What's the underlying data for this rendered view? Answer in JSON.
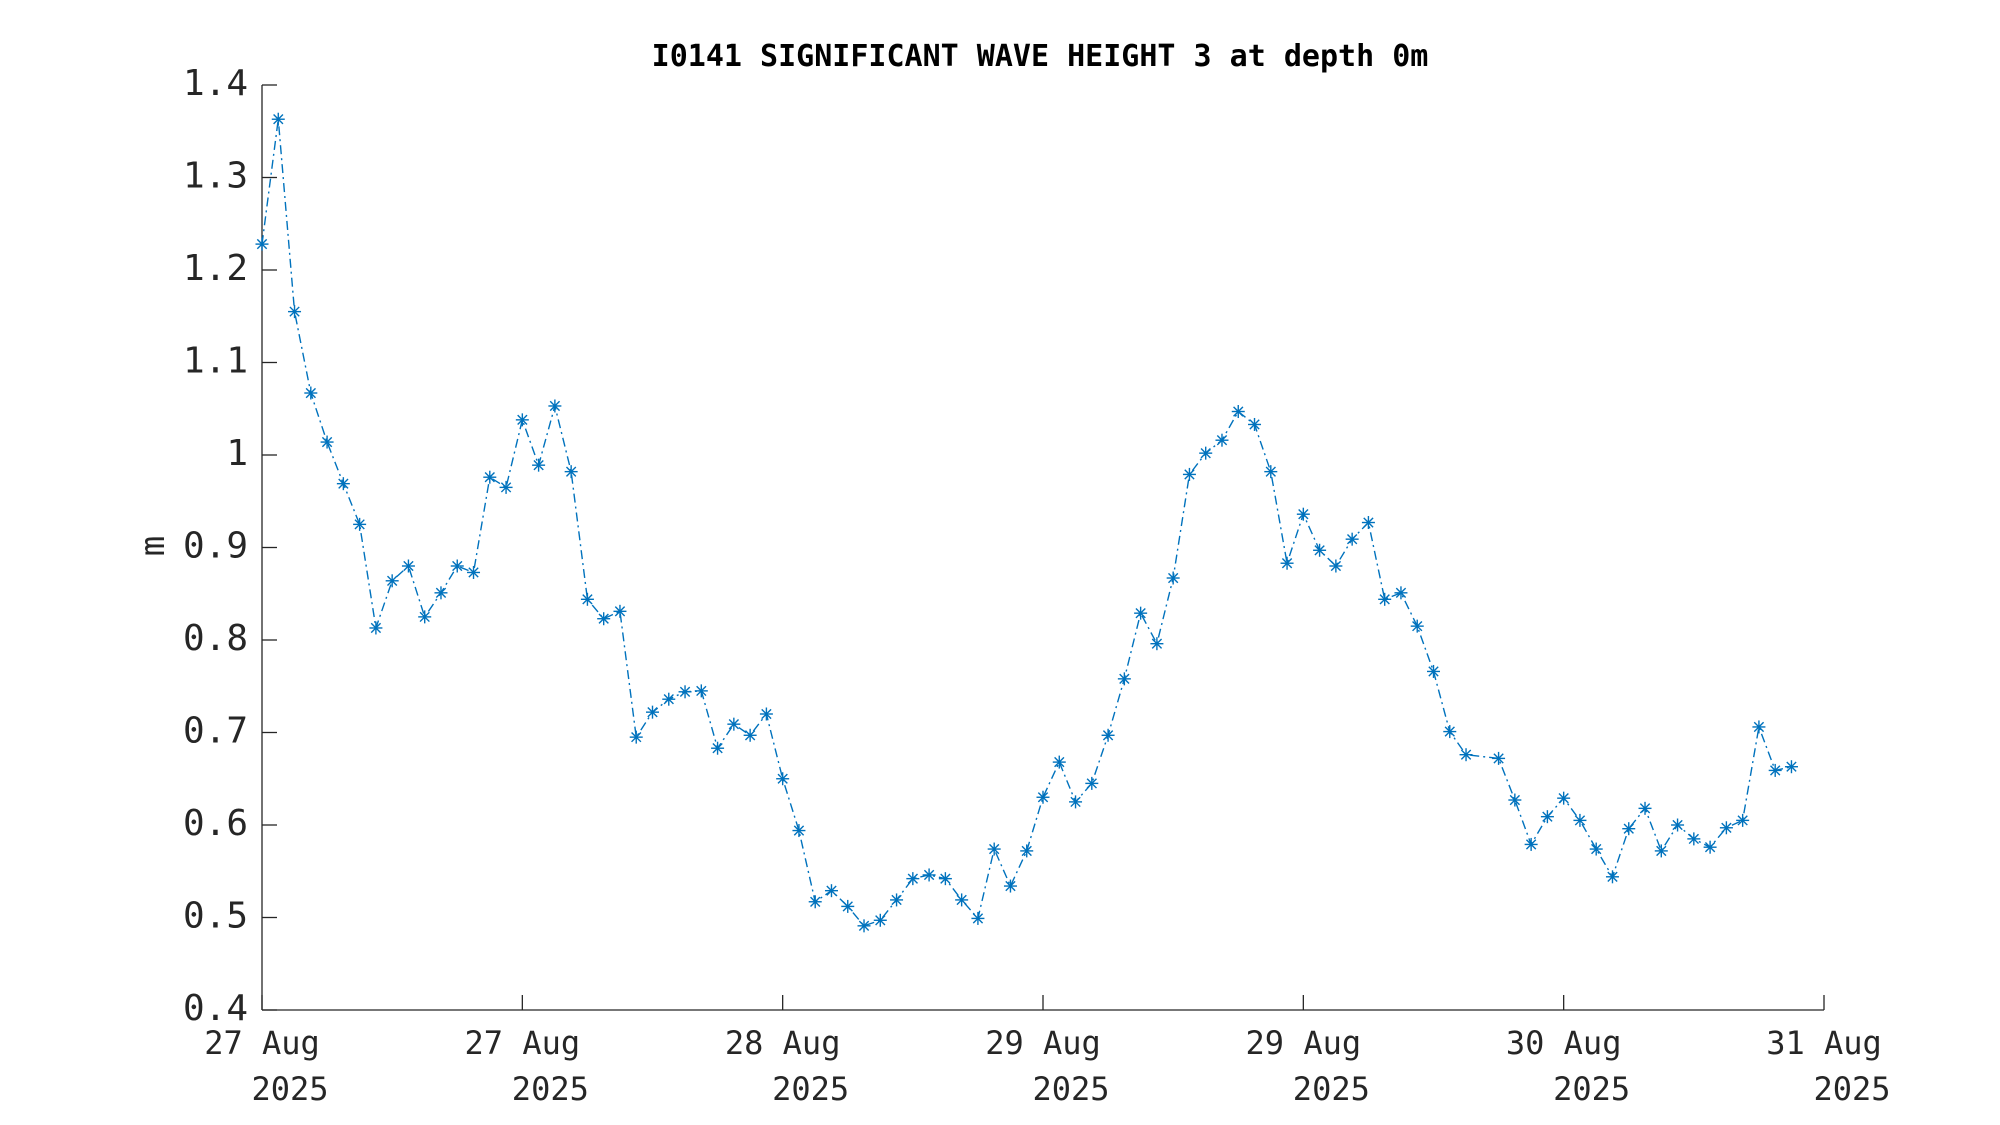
{
  "chart_data": {
    "type": "line",
    "title": "I0141 SIGNIFICANT WAVE HEIGHT 3 at depth 0m",
    "xlabel": "",
    "ylabel": "m",
    "ylim": [
      0.4,
      1.4
    ],
    "yticks": [
      0.4,
      0.5,
      0.6,
      0.7,
      0.8,
      0.9,
      1,
      1.1,
      1.2,
      1.3,
      1.4
    ],
    "ytick_labels": [
      "0.4",
      "0.5",
      "0.6",
      "0.7",
      "0.8",
      "0.9",
      "1",
      "1.1",
      "1.2",
      "1.3",
      "1.4"
    ],
    "xlim_index": [
      0,
      96
    ],
    "xtick_positions": [
      0,
      16,
      32,
      48,
      64,
      80,
      96
    ],
    "xtick_labels": [
      [
        "27 Aug",
        "2025"
      ],
      [
        "27 Aug",
        "2025"
      ],
      [
        "28 Aug",
        "2025"
      ],
      [
        "29 Aug",
        "2025"
      ],
      [
        "29 Aug",
        "2025"
      ],
      [
        "30 Aug",
        "2025"
      ],
      [
        "31 Aug",
        "2025"
      ]
    ],
    "grid": false,
    "line_style": "dash-dot",
    "marker": "asterisk",
    "series": [
      {
        "color": "#0072BD",
        "points": [
          [
            0,
            1.228
          ],
          [
            1,
            1.363
          ],
          [
            2,
            1.155
          ],
          [
            3,
            1.067
          ],
          [
            4,
            1.014
          ],
          [
            5,
            0.969
          ],
          [
            6,
            0.925
          ],
          [
            7,
            0.813
          ],
          [
            8,
            0.864
          ],
          [
            9,
            0.88
          ],
          [
            10,
            0.825
          ],
          [
            11,
            0.851
          ],
          [
            12,
            0.88
          ],
          [
            13,
            0.873
          ],
          [
            14,
            0.976
          ],
          [
            15,
            0.965
          ],
          [
            16,
            1.038
          ],
          [
            17,
            0.989
          ],
          [
            18,
            1.053
          ],
          [
            19,
            0.982
          ],
          [
            20,
            0.844
          ],
          [
            21,
            0.823
          ],
          [
            22,
            0.831
          ],
          [
            23,
            0.695
          ],
          [
            24,
            0.722
          ],
          [
            25,
            0.736
          ],
          [
            26,
            0.744
          ],
          [
            27,
            0.745
          ],
          [
            28,
            0.683
          ],
          [
            29,
            0.709
          ],
          [
            30,
            0.697
          ],
          [
            31,
            0.72
          ],
          [
            32,
            0.65
          ],
          [
            33,
            0.594
          ],
          [
            34,
            0.517
          ],
          [
            35,
            0.529
          ],
          [
            36,
            0.512
          ],
          [
            37,
            0.491
          ],
          [
            38,
            0.497
          ],
          [
            39,
            0.519
          ],
          [
            40,
            0.542
          ],
          [
            41,
            0.546
          ],
          [
            42,
            0.542
          ],
          [
            43,
            0.519
          ],
          [
            44,
            0.499
          ],
          [
            45,
            0.574
          ],
          [
            46,
            0.534
          ],
          [
            47,
            0.572
          ],
          [
            48,
            0.63
          ],
          [
            49,
            0.668
          ],
          [
            50,
            0.625
          ],
          [
            51,
            0.645
          ],
          [
            52,
            0.697
          ],
          [
            53,
            0.758
          ],
          [
            54,
            0.829
          ],
          [
            55,
            0.796
          ],
          [
            56,
            0.867
          ],
          [
            57,
            0.979
          ],
          [
            58,
            1.002
          ],
          [
            59,
            1.016
          ],
          [
            60,
            1.047
          ],
          [
            61,
            1.033
          ],
          [
            62,
            0.982
          ],
          [
            63,
            0.883
          ],
          [
            64,
            0.936
          ],
          [
            65,
            0.897
          ],
          [
            66,
            0.88
          ],
          [
            67,
            0.909
          ],
          [
            68,
            0.927
          ],
          [
            69,
            0.844
          ],
          [
            70,
            0.851
          ],
          [
            71,
            0.815
          ],
          [
            72,
            0.766
          ],
          [
            73,
            0.701
          ],
          [
            74,
            0.676
          ],
          [
            76,
            0.672
          ],
          [
            77,
            0.627
          ],
          [
            78,
            0.579
          ],
          [
            79,
            0.609
          ],
          [
            80,
            0.629
          ],
          [
            81,
            0.605
          ],
          [
            82,
            0.574
          ],
          [
            83,
            0.544
          ],
          [
            84,
            0.596
          ],
          [
            85,
            0.618
          ],
          [
            86,
            0.572
          ],
          [
            87,
            0.6
          ],
          [
            88,
            0.585
          ],
          [
            89,
            0.576
          ],
          [
            90,
            0.597
          ],
          [
            91,
            0.605
          ],
          [
            92,
            0.706
          ],
          [
            93,
            0.659
          ],
          [
            94,
            0.663
          ]
        ]
      }
    ]
  }
}
